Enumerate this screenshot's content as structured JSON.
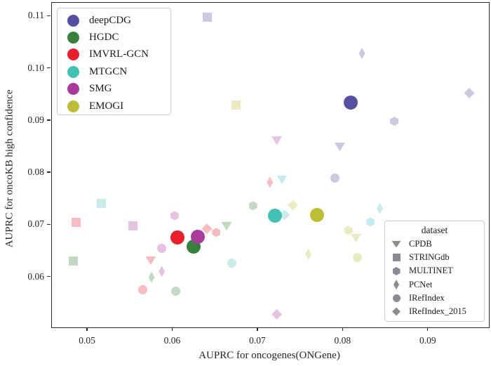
{
  "figure": {
    "background": "#ffffff"
  },
  "chart_data": {
    "type": "scatter",
    "title": "",
    "xlabel": "AUPRC for oncogenes(ONGene)",
    "ylabel": "AUPRC for oncoKB high confidence",
    "xlim": [
      0.0458,
      0.0971
    ],
    "ylim": [
      0.0504,
      0.1126
    ],
    "xticks": [
      0.05,
      0.06,
      0.07,
      0.08,
      0.09
    ],
    "yticks": [
      0.06,
      0.07,
      0.08,
      0.09,
      0.1,
      0.11
    ],
    "grid": false,
    "legend_method_position": "upper-left",
    "legend_dataset_position": "lower-right",
    "legend_dataset_title": "dataset",
    "faded_opacity": 0.3,
    "legend_marker_color": "#8b8b94",
    "methods": [
      {
        "name": "deepCDG",
        "color": "#5650a2"
      },
      {
        "name": "HGDC",
        "color": "#38803d"
      },
      {
        "name": "IMVRL-GCN",
        "color": "#e81f2c"
      },
      {
        "name": "MTGCN",
        "color": "#45c0b5"
      },
      {
        "name": "SMG",
        "color": "#a93a9b"
      },
      {
        "name": "EMOGI",
        "color": "#bcbe37"
      }
    ],
    "datasets": [
      {
        "name": "CPDB",
        "marker": "triangle-down"
      },
      {
        "name": "STRINGdb",
        "marker": "square"
      },
      {
        "name": "MULTINET",
        "marker": "hexagon"
      },
      {
        "name": "PCNet",
        "marker": "thin-diamond"
      },
      {
        "name": "IRefIndex",
        "marker": "circle"
      },
      {
        "name": "IRefIndex_2015",
        "marker": "diamond"
      }
    ],
    "points": [
      {
        "method": "deepCDG",
        "dataset": "STRINGdb",
        "x": 0.064,
        "y": 0.1098,
        "emphasis": false
      },
      {
        "method": "deepCDG",
        "dataset": "PCNet",
        "x": 0.0822,
        "y": 0.1029,
        "emphasis": false
      },
      {
        "method": "deepCDG",
        "dataset": "IRefIndex_2015",
        "x": 0.0948,
        "y": 0.0953,
        "emphasis": false
      },
      {
        "method": "deepCDG",
        "dataset": "MULTINET",
        "x": 0.086,
        "y": 0.0899,
        "emphasis": false
      },
      {
        "method": "deepCDG",
        "dataset": "CPDB",
        "x": 0.0796,
        "y": 0.085,
        "emphasis": false
      },
      {
        "method": "deepCDG",
        "dataset": "IRefIndex",
        "x": 0.079,
        "y": 0.079,
        "emphasis": false
      },
      {
        "method": "deepCDG",
        "dataset": null,
        "x": 0.0809,
        "y": 0.0935,
        "emphasis": true
      },
      {
        "method": "HGDC",
        "dataset": "STRINGdb",
        "x": 0.0483,
        "y": 0.0631,
        "emphasis": false
      },
      {
        "method": "HGDC",
        "dataset": "CPDB",
        "x": 0.0663,
        "y": 0.0698,
        "emphasis": false
      },
      {
        "method": "HGDC",
        "dataset": "MULTINET",
        "x": 0.0694,
        "y": 0.0737,
        "emphasis": false
      },
      {
        "method": "HGDC",
        "dataset": "PCNet",
        "x": 0.0575,
        "y": 0.06,
        "emphasis": false
      },
      {
        "method": "HGDC",
        "dataset": "IRefIndex",
        "x": 0.0603,
        "y": 0.0574,
        "emphasis": false
      },
      {
        "method": "HGDC",
        "dataset": null,
        "x": 0.0624,
        "y": 0.0659,
        "emphasis": true
      },
      {
        "method": "IMVRL-GCN",
        "dataset": "STRINGdb",
        "x": 0.0486,
        "y": 0.0705,
        "emphasis": false
      },
      {
        "method": "IMVRL-GCN",
        "dataset": "PCNet",
        "x": 0.0714,
        "y": 0.0782,
        "emphasis": false
      },
      {
        "method": "IMVRL-GCN",
        "dataset": "IRefIndex_2015",
        "x": 0.064,
        "y": 0.0693,
        "emphasis": false
      },
      {
        "method": "IMVRL-GCN",
        "dataset": "MULTINET",
        "x": 0.0651,
        "y": 0.0686,
        "emphasis": false
      },
      {
        "method": "IMVRL-GCN",
        "dataset": "CPDB",
        "x": 0.0574,
        "y": 0.0632,
        "emphasis": false
      },
      {
        "method": "IMVRL-GCN",
        "dataset": "IRefIndex",
        "x": 0.0565,
        "y": 0.0576,
        "emphasis": false
      },
      {
        "method": "IMVRL-GCN",
        "dataset": null,
        "x": 0.0605,
        "y": 0.0677,
        "emphasis": true
      },
      {
        "method": "MTGCN",
        "dataset": "STRINGdb",
        "x": 0.0516,
        "y": 0.0741,
        "emphasis": false
      },
      {
        "method": "MTGCN",
        "dataset": "CPDB",
        "x": 0.0728,
        "y": 0.0787,
        "emphasis": false
      },
      {
        "method": "MTGCN",
        "dataset": "IRefIndex_2015",
        "x": 0.0731,
        "y": 0.072,
        "emphasis": false
      },
      {
        "method": "MTGCN",
        "dataset": "PCNet",
        "x": 0.0843,
        "y": 0.0732,
        "emphasis": false
      },
      {
        "method": "MTGCN",
        "dataset": "MULTINET",
        "x": 0.0832,
        "y": 0.0706,
        "emphasis": false
      },
      {
        "method": "MTGCN",
        "dataset": "IRefIndex",
        "x": 0.0669,
        "y": 0.0627,
        "emphasis": false
      },
      {
        "method": "MTGCN",
        "dataset": null,
        "x": 0.072,
        "y": 0.0718,
        "emphasis": true
      },
      {
        "method": "SMG",
        "dataset": "CPDB",
        "x": 0.0722,
        "y": 0.0862,
        "emphasis": false
      },
      {
        "method": "SMG",
        "dataset": "STRINGdb",
        "x": 0.0553,
        "y": 0.0698,
        "emphasis": false
      },
      {
        "method": "SMG",
        "dataset": "MULTINET",
        "x": 0.0602,
        "y": 0.0718,
        "emphasis": false
      },
      {
        "method": "SMG",
        "dataset": "IRefIndex",
        "x": 0.0587,
        "y": 0.0656,
        "emphasis": false
      },
      {
        "method": "SMG",
        "dataset": "PCNet",
        "x": 0.0587,
        "y": 0.0611,
        "emphasis": false
      },
      {
        "method": "SMG",
        "dataset": "IRefIndex_2015",
        "x": 0.0722,
        "y": 0.0529,
        "emphasis": false
      },
      {
        "method": "SMG",
        "dataset": null,
        "x": 0.0629,
        "y": 0.0678,
        "emphasis": true
      },
      {
        "method": "EMOGI",
        "dataset": "STRINGdb",
        "x": 0.0674,
        "y": 0.093,
        "emphasis": false
      },
      {
        "method": "EMOGI",
        "dataset": "IRefIndex_2015",
        "x": 0.0741,
        "y": 0.0738,
        "emphasis": false
      },
      {
        "method": "EMOGI",
        "dataset": "MULTINET",
        "x": 0.0806,
        "y": 0.069,
        "emphasis": false
      },
      {
        "method": "EMOGI",
        "dataset": "CPDB",
        "x": 0.0815,
        "y": 0.0675,
        "emphasis": false
      },
      {
        "method": "EMOGI",
        "dataset": "PCNet",
        "x": 0.0759,
        "y": 0.0644,
        "emphasis": false
      },
      {
        "method": "EMOGI",
        "dataset": "IRefIndex",
        "x": 0.0817,
        "y": 0.0638,
        "emphasis": false
      },
      {
        "method": "EMOGI",
        "dataset": null,
        "x": 0.0769,
        "y": 0.072,
        "emphasis": true
      }
    ]
  }
}
